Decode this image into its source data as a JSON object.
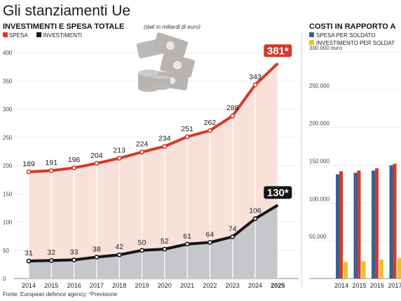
{
  "header": {
    "title": "Gli stanziamenti Ue"
  },
  "source": "Fonte: European defence agency; *Previsione",
  "colors": {
    "red": "#d23a2c",
    "black": "#141414",
    "redFill": "#f8e1d8",
    "grayFill": "#c5c7cb",
    "blue": "#3a5f8a",
    "yellow": "#e4c234"
  },
  "chart_data": [
    {
      "type": "line",
      "title": "INVESTIMENTI E SPESA TOTALE",
      "note": "(dati in miliardi di euro)",
      "x": [
        "2014",
        "2015",
        "2016",
        "2017",
        "2018",
        "2019",
        "2020",
        "2021",
        "2022",
        "2023",
        "2024",
        "2025"
      ],
      "ylim": [
        0,
        400
      ],
      "yticks": [
        0,
        50,
        100,
        150,
        200,
        250,
        300,
        350,
        400
      ],
      "series": [
        {
          "name": "SPESA",
          "values": [
            189,
            191,
            196,
            204,
            213,
            224,
            234,
            251,
            262,
            288,
            343,
            381
          ],
          "labels": [
            "189",
            "191",
            "196",
            "204",
            "213",
            "224",
            "234",
            "251",
            "262",
            "288",
            "343",
            "381*"
          ]
        },
        {
          "name": "INVESTIMENTI",
          "values": [
            31,
            32,
            33,
            38,
            42,
            50,
            52,
            61,
            64,
            74,
            106,
            130
          ],
          "labels": [
            "31",
            "32",
            "33",
            "38",
            "42",
            "50",
            "52",
            "61",
            "64",
            "74",
            "106",
            "130*"
          ]
        }
      ]
    },
    {
      "type": "bar",
      "title": "COSTI IN RAPPORTO A",
      "categories": [
        "2014",
        "2015",
        "2016",
        "2017"
      ],
      "ylim": [
        0,
        300000
      ],
      "yticks": [
        "50.000",
        "100.000",
        "150.000",
        "200.000",
        "250.000",
        "300.000 euro"
      ],
      "series": [
        {
          "name": "SPESA PER SOLDATO",
          "values": [
            138000,
            140000,
            143000,
            150000
          ]
        },
        {
          "name": "INVESTIMENTO PER SOLDAT",
          "values": [
            22000,
            23000,
            25000,
            27000
          ]
        }
      ],
      "third_series_values": [
        142000,
        143000,
        146000,
        152000
      ]
    }
  ]
}
